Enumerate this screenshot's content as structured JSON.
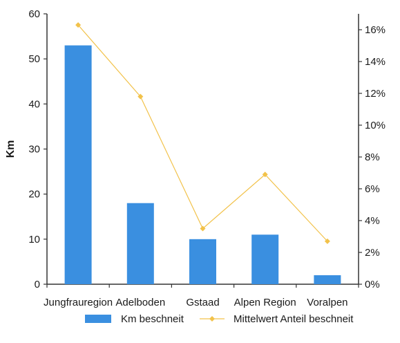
{
  "chart_data": {
    "type": "bar",
    "categories": [
      "Jungfrauregion",
      "Adelboden",
      "Gstaad",
      "Alpen Region",
      "Voralpen"
    ],
    "ylabel": "Km",
    "ylim": [
      0,
      60
    ],
    "y_ticks": [
      "0",
      "10",
      "20",
      "30",
      "40",
      "50",
      "60"
    ],
    "y2lim": [
      0,
      0.17
    ],
    "y2_ticks": [
      "0%",
      "2%",
      "4%",
      "6%",
      "8%",
      "10%",
      "12%",
      "14%",
      "16%"
    ],
    "grid": false,
    "legend_position": "bottom",
    "series": [
      {
        "name": "Km beschneit",
        "type": "bar",
        "axis": "left",
        "values": [
          53,
          18,
          10,
          11,
          2
        ],
        "color": "#3a8fe0"
      },
      {
        "name": "Mittelwert Anteil beschneit",
        "type": "line",
        "axis": "right",
        "values": [
          0.163,
          0.118,
          0.035,
          0.069,
          0.027
        ],
        "color": "#f2c24a"
      }
    ]
  }
}
